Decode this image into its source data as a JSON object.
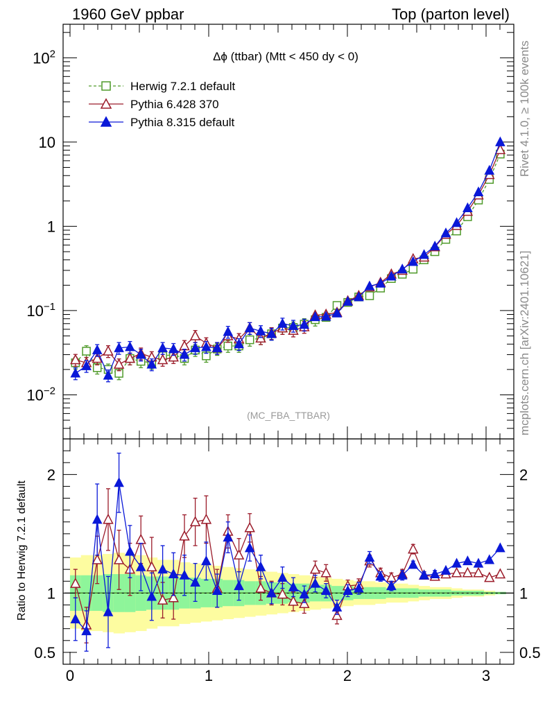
{
  "header": {
    "left_title": "1960 GeV ppbar",
    "right_title": "Top (parton level)"
  },
  "side_labels": {
    "rivet": "Rivet 4.1.0, ≥ 100k events",
    "mcplots": "mcplots.cern.ch [arXiv:2401.10621]"
  },
  "chart_data": {
    "type": "line",
    "title": "Δϕ (ttbar) (Mtt < 450 dy < 0)",
    "annotation": "(MC_FBA_TTBAR)",
    "xlabel": "",
    "ylabel": "",
    "ratio_ylabel": "Ratio to Herwig 7.2.1 default",
    "xlim": [
      -0.05,
      3.2
    ],
    "ylim": [
      0.003,
      250
    ],
    "yscale": "log",
    "ratio_ylim": [
      0.4,
      2.3
    ],
    "x_ticks": [
      "0",
      "1",
      "2",
      "3"
    ],
    "y_ticks": [
      "10^-2",
      "10^-1",
      "1",
      "10",
      "10^2"
    ],
    "ratio_y_ticks": [
      "0.5",
      "1",
      "2"
    ],
    "x": [
      0.039,
      0.118,
      0.196,
      0.275,
      0.353,
      0.432,
      0.511,
      0.589,
      0.668,
      0.746,
      0.825,
      0.903,
      0.982,
      1.061,
      1.139,
      1.218,
      1.296,
      1.375,
      1.453,
      1.532,
      1.61,
      1.689,
      1.768,
      1.846,
      1.925,
      2.003,
      2.082,
      2.16,
      2.239,
      2.317,
      2.396,
      2.474,
      2.553,
      2.631,
      2.71,
      2.788,
      2.867,
      2.945,
      3.024,
      3.102
    ],
    "series": [
      {
        "name": "Herwig 7.2.1 default",
        "color": "#4f9a2a",
        "marker": "open-square",
        "dashed": true,
        "values": [
          0.024,
          0.033,
          0.021,
          0.02,
          0.018,
          0.027,
          0.025,
          0.024,
          0.029,
          0.03,
          0.027,
          0.034,
          0.029,
          0.035,
          0.038,
          0.038,
          0.045,
          0.047,
          0.053,
          0.062,
          0.063,
          0.069,
          0.078,
          0.083,
          0.115,
          0.125,
          0.145,
          0.15,
          0.185,
          0.24,
          0.27,
          0.31,
          0.4,
          0.5,
          0.7,
          0.88,
          1.3,
          2.05,
          3.6,
          7.2
        ]
      },
      {
        "name": "Pythia 6.428 370",
        "color": "#9b1b2a",
        "marker": "open-triangle",
        "dashed": false,
        "values": [
          0.026,
          0.024,
          0.027,
          0.033,
          0.023,
          0.027,
          0.031,
          0.028,
          0.026,
          0.028,
          0.038,
          0.05,
          0.041,
          0.036,
          0.05,
          0.046,
          0.062,
          0.047,
          0.054,
          0.062,
          0.058,
          0.064,
          0.088,
          0.09,
          0.095,
          0.13,
          0.15,
          0.19,
          0.215,
          0.27,
          0.3,
          0.41,
          0.43,
          0.57,
          0.8,
          1.02,
          1.5,
          2.35,
          4.1,
          8.1
        ]
      },
      {
        "name": "Pythia 8.315 default",
        "color": "#0a18d8",
        "marker": "filled-triangle",
        "dashed": false,
        "values": [
          0.018,
          0.022,
          0.034,
          0.017,
          0.036,
          0.037,
          0.03,
          0.023,
          0.036,
          0.035,
          0.03,
          0.036,
          0.037,
          0.036,
          0.056,
          0.04,
          0.062,
          0.057,
          0.053,
          0.07,
          0.066,
          0.068,
          0.084,
          0.085,
          0.093,
          0.128,
          0.145,
          0.195,
          0.21,
          0.255,
          0.31,
          0.38,
          0.46,
          0.58,
          0.83,
          1.1,
          1.65,
          2.55,
          4.6,
          10.0
        ]
      }
    ],
    "ratio_series": [
      {
        "name": "Pythia 6.428 370",
        "values": [
          1.08,
          0.73,
          1.28,
          1.62,
          1.28,
          1.2,
          1.45,
          1.22,
          0.94,
          0.96,
          1.48,
          1.6,
          1.62,
          1.04,
          1.52,
          1.32,
          1.55,
          1.04,
          1.0,
          0.99,
          0.93,
          0.91,
          1.2,
          1.17,
          0.81,
          1.06,
          1.07,
          1.27,
          1.17,
          1.13,
          1.16,
          1.37,
          1.15,
          1.14,
          1.16,
          1.17,
          1.17,
          1.17,
          1.13,
          1.16
        ],
        "errors": [
          0.12,
          0.15,
          0.2,
          0.26,
          0.25,
          0.22,
          0.2,
          0.25,
          0.15,
          0.18,
          0.18,
          0.2,
          0.2,
          0.16,
          0.14,
          0.14,
          0.12,
          0.1,
          0.1,
          0.09,
          0.08,
          0.08,
          0.07,
          0.07,
          0.07,
          0.05,
          0.05,
          0.05,
          0.04,
          0.04,
          0.04,
          0.04,
          0.03,
          0.03,
          0.02,
          0.02,
          0.02,
          0.02,
          0.01,
          0.01
        ]
      },
      {
        "name": "Pythia 8.315 default",
        "values": [
          0.78,
          0.68,
          1.62,
          0.84,
          1.93,
          1.35,
          1.22,
          0.97,
          1.2,
          1.16,
          1.15,
          1.09,
          1.27,
          1.02,
          1.47,
          1.06,
          1.38,
          1.22,
          1.0,
          1.13,
          1.05,
          0.99,
          1.08,
          1.02,
          0.88,
          1.02,
          1.04,
          1.3,
          1.14,
          1.06,
          1.15,
          1.24,
          1.15,
          1.16,
          1.19,
          1.25,
          1.27,
          1.25,
          1.28,
          1.38
        ],
        "errors": [
          0.18,
          0.17,
          0.3,
          0.3,
          0.25,
          0.22,
          0.2,
          0.2,
          0.2,
          0.18,
          0.17,
          0.16,
          0.16,
          0.14,
          0.13,
          0.12,
          0.11,
          0.1,
          0.09,
          0.09,
          0.08,
          0.07,
          0.07,
          0.06,
          0.06,
          0.05,
          0.05,
          0.05,
          0.04,
          0.04,
          0.04,
          0.03,
          0.03,
          0.03,
          0.02,
          0.02,
          0.02,
          0.02,
          0.01,
          0.01
        ]
      }
    ],
    "bands": {
      "green_halfwidth": [
        0.15,
        0.15,
        0.15,
        0.16,
        0.16,
        0.16,
        0.15,
        0.14,
        0.14,
        0.14,
        0.13,
        0.13,
        0.12,
        0.12,
        0.11,
        0.11,
        0.1,
        0.1,
        0.09,
        0.09,
        0.08,
        0.08,
        0.07,
        0.07,
        0.06,
        0.06,
        0.05,
        0.05,
        0.05,
        0.04,
        0.04,
        0.04,
        0.03,
        0.03,
        0.03,
        0.02,
        0.02,
        0.02,
        0.01,
        0.01
      ],
      "yellow_halfwidth": [
        0.3,
        0.32,
        0.32,
        0.33,
        0.34,
        0.33,
        0.32,
        0.3,
        0.28,
        0.28,
        0.26,
        0.25,
        0.24,
        0.23,
        0.22,
        0.21,
        0.2,
        0.19,
        0.18,
        0.17,
        0.16,
        0.15,
        0.14,
        0.13,
        0.12,
        0.11,
        0.1,
        0.1,
        0.09,
        0.08,
        0.08,
        0.07,
        0.06,
        0.05,
        0.05,
        0.04,
        0.03,
        0.03,
        0.02,
        0.01
      ]
    },
    "band_colors": {
      "green": "#8ef59a",
      "yellow": "#fdfca0"
    },
    "legend_position": "top-left"
  }
}
